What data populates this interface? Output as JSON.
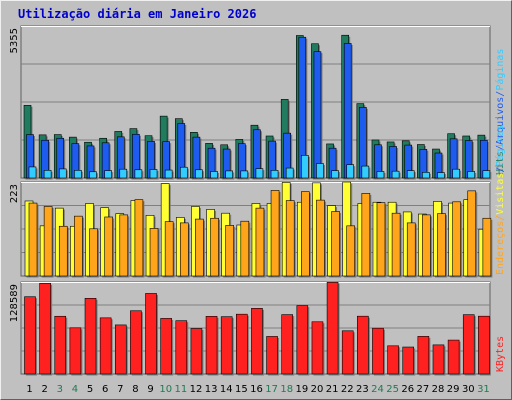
{
  "title": "Utilização diária em Janeiro 2026",
  "days": [
    "1",
    "2",
    "3",
    "4",
    "5",
    "6",
    "7",
    "8",
    "9",
    "10",
    "11",
    "12",
    "13",
    "14",
    "15",
    "16",
    "17",
    "18",
    "19",
    "20",
    "21",
    "22",
    "23",
    "24",
    "25",
    "26",
    "27",
    "28",
    "29",
    "30",
    "31"
  ],
  "weekend_days": [
    3,
    4,
    10,
    11,
    17,
    18,
    24,
    25,
    31
  ],
  "colors": {
    "hits": "#217b5e",
    "pages": "#2953d9",
    "files": "#1e5cf0",
    "visits": "#ffa51c",
    "hosts": "#ffff33",
    "kbytes": "#ff2020",
    "visits_light": "#33ccff",
    "weekday_label": "#000000",
    "weekend_label": "#1f7a52"
  },
  "chart_data": [
    {
      "type": "bar",
      "panel": "top",
      "ytick_label": "5355",
      "ylim": [
        0,
        5355
      ],
      "categories": [
        "1",
        "2",
        "3",
        "4",
        "5",
        "6",
        "7",
        "8",
        "9",
        "10",
        "11",
        "12",
        "13",
        "14",
        "15",
        "16",
        "17",
        "18",
        "19",
        "20",
        "21",
        "22",
        "23",
        "24",
        "25",
        "26",
        "27",
        "28",
        "29",
        "30",
        "31"
      ],
      "series": [
        {
          "name": "Hits",
          "values": [
            2560,
            1520,
            1530,
            1440,
            1260,
            1400,
            1640,
            1740,
            1490,
            2180,
            2090,
            1610,
            1220,
            1170,
            1360,
            1860,
            1480,
            2770,
            5020,
            4730,
            1200,
            5030,
            2620,
            1340,
            1270,
            1310,
            1180,
            1020,
            1560,
            1480,
            1510
          ]
        },
        {
          "name": "Arquivos",
          "values": [
            1530,
            1330,
            1400,
            1210,
            1130,
            1240,
            1450,
            1540,
            1290,
            1280,
            1920,
            1440,
            1050,
            1020,
            1210,
            1700,
            1300,
            1580,
            4960,
            4450,
            1050,
            4740,
            2490,
            1170,
            1110,
            1160,
            1010,
            880,
            1380,
            1320,
            1330
          ]
        },
        {
          "name": "Páginas",
          "values": [
            390,
            270,
            320,
            270,
            220,
            260,
            310,
            290,
            300,
            280,
            380,
            290,
            230,
            250,
            250,
            330,
            270,
            350,
            800,
            510,
            260,
            470,
            420,
            230,
            240,
            260,
            200,
            190,
            310,
            230,
            260
          ]
        }
      ],
      "right_labels": [
        {
          "text": "Hits",
          "color": "#217b5e"
        },
        {
          "text": "/",
          "color": "#1e5cf0"
        },
        {
          "text": "Arquivos",
          "color": "#1e5cf0"
        },
        {
          "text": "/",
          "color": "#1e5cf0"
        },
        {
          "text": "Páginas",
          "color": "#33ccff"
        }
      ]
    },
    {
      "type": "bar",
      "panel": "middle",
      "ytick_label": "223",
      "ylim": [
        0,
        223
      ],
      "categories": [
        "1",
        "2",
        "3",
        "4",
        "5",
        "6",
        "7",
        "8",
        "9",
        "10",
        "11",
        "12",
        "13",
        "14",
        "15",
        "16",
        "17",
        "18",
        "19",
        "20",
        "21",
        "22",
        "23",
        "24",
        "25",
        "26",
        "27",
        "28",
        "29",
        "30",
        "31"
      ],
      "series": [
        {
          "name": "Visitas",
          "values": [
            178,
            119,
            161,
            118,
            172,
            162,
            148,
            179,
            144,
            219,
            139,
            165,
            158,
            149,
            121,
            172,
            172,
            222,
            175,
            221,
            167,
            223,
            172,
            175,
            175,
            152,
            147,
            177,
            173,
            181,
            111
          ]
        },
        {
          "name": "Endereços",
          "values": [
            173,
            165,
            118,
            142,
            112,
            140,
            145,
            181,
            113,
            129,
            126,
            135,
            137,
            120,
            130,
            161,
            203,
            179,
            200,
            180,
            153,
            119,
            196,
            174,
            149,
            126,
            145,
            148,
            176,
            202,
            137
          ]
        }
      ],
      "right_labels": [
        {
          "text": "Endereços",
          "color": "#ffa51c"
        },
        {
          "text": "/",
          "color": "#ffa51c"
        },
        {
          "text": "Visitas",
          "color": "#ffff33"
        },
        {
          "text": "/",
          "color": "#1e5cf0"
        },
        {
          "text": "Páginas",
          "color": "#33ccff"
        }
      ]
    },
    {
      "type": "bar",
      "panel": "bottom",
      "ytick_label": "128589",
      "ylim": [
        0,
        128589
      ],
      "categories": [
        "1",
        "2",
        "3",
        "4",
        "5",
        "6",
        "7",
        "8",
        "9",
        "10",
        "11",
        "12",
        "13",
        "14",
        "15",
        "16",
        "17",
        "18",
        "19",
        "20",
        "21",
        "22",
        "23",
        "24",
        "25",
        "26",
        "27",
        "28",
        "29",
        "30",
        "31"
      ],
      "series": [
        {
          "name": "KBytes",
          "values": [
            108000,
            126800,
            80700,
            64600,
            105800,
            78500,
            68600,
            88400,
            112600,
            77700,
            74500,
            63600,
            80600,
            80100,
            83600,
            91800,
            52500,
            83000,
            95500,
            73000,
            128100,
            60400,
            80800,
            64000,
            39400,
            37700,
            52600,
            40700,
            47400,
            82900,
            80800
          ]
        }
      ],
      "right_labels": [
        {
          "text": "KBytes",
          "color": "#ff2020"
        }
      ]
    }
  ]
}
